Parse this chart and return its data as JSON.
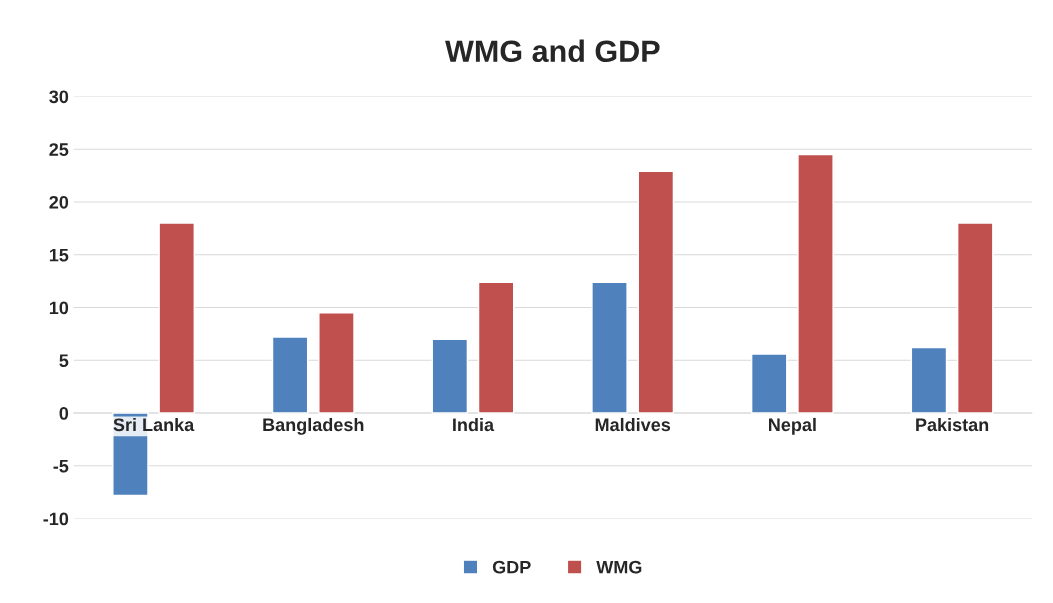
{
  "chart_data": {
    "type": "bar",
    "title": "WMG and GDP",
    "categories": [
      "Sri Lanka",
      "Bangladesh",
      "India",
      "Maldives",
      "Nepal",
      "Pakistan"
    ],
    "series": [
      {
        "name": "GDP",
        "color": "#4f81bd",
        "values": [
          -7.8,
          7.2,
          7.0,
          12.4,
          5.6,
          6.2
        ]
      },
      {
        "name": "WMG",
        "color": "#c0504d",
        "values": [
          18.0,
          9.5,
          12.4,
          22.9,
          24.5,
          18.0
        ]
      }
    ],
    "ylim": [
      -10,
      30
    ],
    "yticks": [
      -10,
      -5,
      0,
      5,
      10,
      15,
      20,
      25,
      30
    ],
    "grid": "y",
    "legend": "bottom"
  }
}
